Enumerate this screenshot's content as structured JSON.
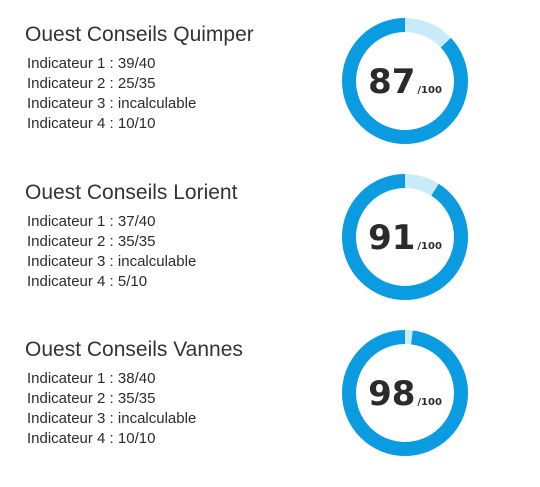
{
  "colors": {
    "primary": "#0b9be0",
    "track": "#c9eaf8",
    "text": "#2b2b2b"
  },
  "score_suffix": "/100",
  "chart_data": [
    {
      "type": "pie",
      "title": "Ouest Conseils Quimper",
      "value": 87,
      "max": 100,
      "indicators": [
        {
          "label": "Indicateur 1",
          "value": "39/40"
        },
        {
          "label": "Indicateur 2",
          "value": "25/35"
        },
        {
          "label": "Indicateur 3",
          "value": "incalculable"
        },
        {
          "label": "Indicateur 4",
          "value": "10/10"
        }
      ]
    },
    {
      "type": "pie",
      "title": "Ouest Conseils Lorient",
      "value": 91,
      "max": 100,
      "indicators": [
        {
          "label": "Indicateur 1",
          "value": "37/40"
        },
        {
          "label": "Indicateur 2",
          "value": "35/35"
        },
        {
          "label": "Indicateur 3",
          "value": "incalculable"
        },
        {
          "label": "Indicateur 4",
          "value": "5/10"
        }
      ]
    },
    {
      "type": "pie",
      "title": "Ouest Conseils Vannes",
      "value": 98,
      "max": 100,
      "indicators": [
        {
          "label": "Indicateur 1",
          "value": "38/40"
        },
        {
          "label": "Indicateur 2",
          "value": "35/35"
        },
        {
          "label": "Indicateur 3",
          "value": "incalculable"
        },
        {
          "label": "Indicateur 4",
          "value": "10/10"
        }
      ]
    }
  ]
}
